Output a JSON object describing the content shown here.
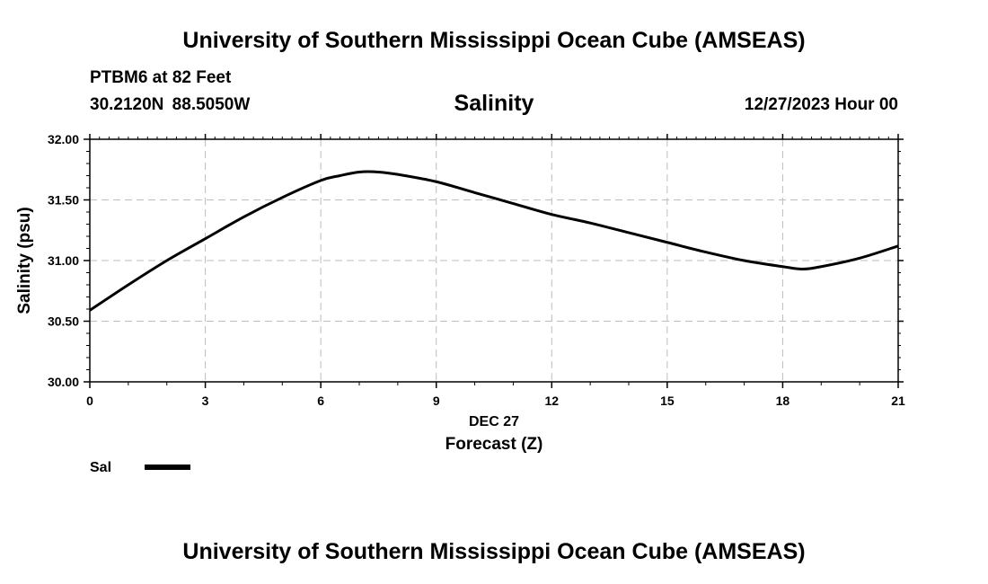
{
  "header": {
    "title": "University of Southern Mississippi Ocean Cube (AMSEAS)",
    "station": "PTBM6 at 82 Feet",
    "coords": "30.2120N  88.5050W",
    "variable": "Salinity",
    "timestamp": "12/27/2023 Hour 00"
  },
  "footer": {
    "title": "University of Southern Mississippi Ocean Cube (AMSEAS)"
  },
  "chart_data": {
    "type": "line",
    "title": "Salinity",
    "xlabel": "Forecast (Z)",
    "xlabel_date": "DEC 27",
    "ylabel": "Salinity (psu)",
    "xlim": [
      0,
      21
    ],
    "ylim": [
      30.0,
      32.0
    ],
    "x_ticks": [
      0,
      3,
      6,
      9,
      12,
      15,
      18,
      21
    ],
    "y_ticks": [
      "30.00",
      "30.50",
      "31.00",
      "31.50",
      "32.00"
    ],
    "grid": true,
    "legend": {
      "position": "bottom-left",
      "entries": [
        "Sal"
      ]
    },
    "series": [
      {
        "name": "Sal",
        "color": "#000000",
        "x": [
          0,
          1,
          2,
          3,
          4,
          5,
          6,
          6.5,
          7,
          7.5,
          8,
          9,
          10,
          11,
          12,
          13,
          14,
          15,
          16,
          17,
          18,
          18.5,
          19,
          20,
          21
        ],
        "values": [
          30.59,
          30.8,
          31.0,
          31.18,
          31.36,
          31.52,
          31.66,
          31.7,
          31.73,
          31.73,
          31.71,
          31.65,
          31.56,
          31.47,
          31.38,
          31.31,
          31.23,
          31.15,
          31.07,
          31.0,
          30.95,
          30.93,
          30.95,
          31.02,
          31.12
        ]
      }
    ]
  }
}
